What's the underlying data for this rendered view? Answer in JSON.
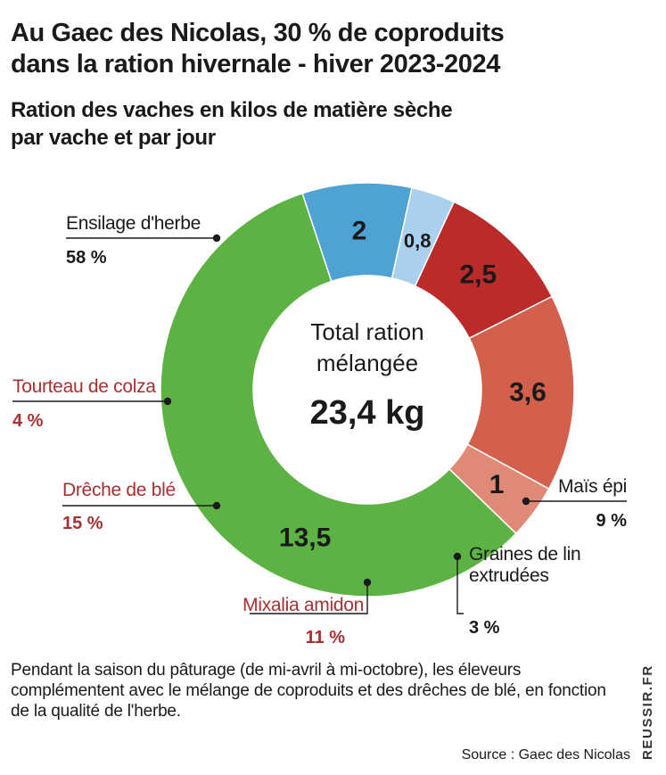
{
  "header": {
    "title": "Au Gaec des Nicolas, 30 % de coproduits\ndans la ration hivernale - hiver 2023-2024",
    "subtitle": "Ration des vaches en kilos de matière sèche\npar vache et par jour"
  },
  "chart_data": {
    "type": "pie",
    "donut": true,
    "center": {
      "line1": "Total ration",
      "line2": "mélangée",
      "total": "23,4 kg"
    },
    "slices": [
      {
        "label": "Ensilage d'herbe",
        "label_lines": [
          "Ensilage d'herbe"
        ],
        "value": 13.5,
        "value_text": "13,5",
        "percent": 58,
        "percent_text": "58 %",
        "color": "#5cb344",
        "label_color": "#1a1a1a"
      },
      {
        "label": "Maïs épi",
        "label_lines": [
          "Maïs épi"
        ],
        "value": 2,
        "value_text": "2",
        "percent": 9,
        "percent_text": "9 %",
        "color": "#4fa3d4",
        "label_color": "#1a1a1a"
      },
      {
        "label": "Graines de lin extrudées",
        "label_lines": [
          "Graines de lin",
          "extrudées"
        ],
        "value": 0.8,
        "value_text": "0,8",
        "percent": 3,
        "percent_text": "3 %",
        "color": "#a9d0ec",
        "label_color": "#1a1a1a"
      },
      {
        "label": "Mixalia amidon",
        "label_lines": [
          "Mixalia amidon"
        ],
        "value": 2.5,
        "value_text": "2,5",
        "percent": 11,
        "percent_text": "11 %",
        "color": "#bb2b2a",
        "label_color": "#a73032"
      },
      {
        "label": "Drêche de blé",
        "label_lines": [
          "Drêche de blé"
        ],
        "value": 3.6,
        "value_text": "3,6",
        "percent": 15,
        "percent_text": "15 %",
        "color": "#d2604c",
        "label_color": "#a73032"
      },
      {
        "label": "Tourteau de colza",
        "label_lines": [
          "Tourteau de colza"
        ],
        "value": 1,
        "value_text": "1",
        "percent": 4,
        "percent_text": "4 %",
        "color": "#df8a76",
        "label_color": "#a73032"
      }
    ]
  },
  "footer": {
    "note": "Pendant la saison du pâturage (de mi-avril à mi-octobre), les éleveurs complémentent avec le mélange de coproduits et des drêches de blé, en fonction de la qualité de l'herbe.",
    "source": "Source : Gaec des Nicolas",
    "brand": "REUSSIR.FR"
  }
}
